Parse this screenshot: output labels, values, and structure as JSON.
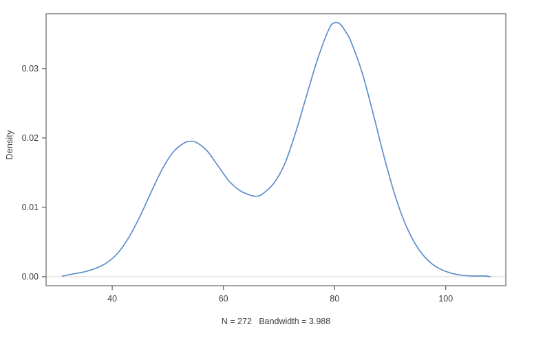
{
  "chart_data": {
    "type": "line",
    "title": "",
    "xlabel": "",
    "ylabel": "Density",
    "subtitle": "N = 272   Bandwidth = 3.988",
    "n": 272,
    "bandwidth": 3.988,
    "x_ticks": [
      40,
      60,
      80,
      100
    ],
    "x_tick_labels": [
      "40",
      "60",
      "80",
      "100"
    ],
    "y_ticks": [
      0,
      0.01,
      0.02,
      0.03
    ],
    "y_tick_labels": [
      "0.00",
      "0.01",
      "0.02",
      "0.03"
    ],
    "xlim": [
      28.1,
      110.8
    ],
    "ylim": [
      -0.0013,
      0.0379
    ],
    "grid": false,
    "zero_line": true,
    "legend_position": "none",
    "colors": {
      "line": "#5b8ec9",
      "box": "#8a8a8a",
      "tick": "#6e6e6e",
      "text": "#3c3c3c",
      "zero_line": "#d8d8d8",
      "background": "#ffffff"
    },
    "series": [
      {
        "name": "kernel density estimate",
        "x": [
          31,
          33,
          35,
          37,
          39,
          41,
          43,
          45,
          47,
          49,
          51,
          53,
          54,
          55,
          57,
          59,
          61,
          63,
          65,
          66,
          67,
          69,
          71,
          73,
          75,
          77,
          79,
          80,
          81,
          82,
          83,
          85,
          87,
          89,
          91,
          93,
          95,
          97,
          99,
          101,
          103,
          105,
          107,
          108
        ],
        "y": [
          0.0001,
          0.0004,
          0.0007,
          0.0012,
          0.002,
          0.0034,
          0.0057,
          0.0087,
          0.0122,
          0.0155,
          0.018,
          0.0193,
          0.0195,
          0.0194,
          0.0182,
          0.016,
          0.0138,
          0.0124,
          0.0117,
          0.0116,
          0.0119,
          0.0134,
          0.0162,
          0.0208,
          0.0262,
          0.0315,
          0.0357,
          0.0366,
          0.0364,
          0.0353,
          0.0338,
          0.0293,
          0.0233,
          0.017,
          0.0114,
          0.0071,
          0.0041,
          0.0022,
          0.0011,
          0.0005,
          0.0002,
          0.0001,
          0.0001,
          0.0
        ]
      }
    ]
  }
}
